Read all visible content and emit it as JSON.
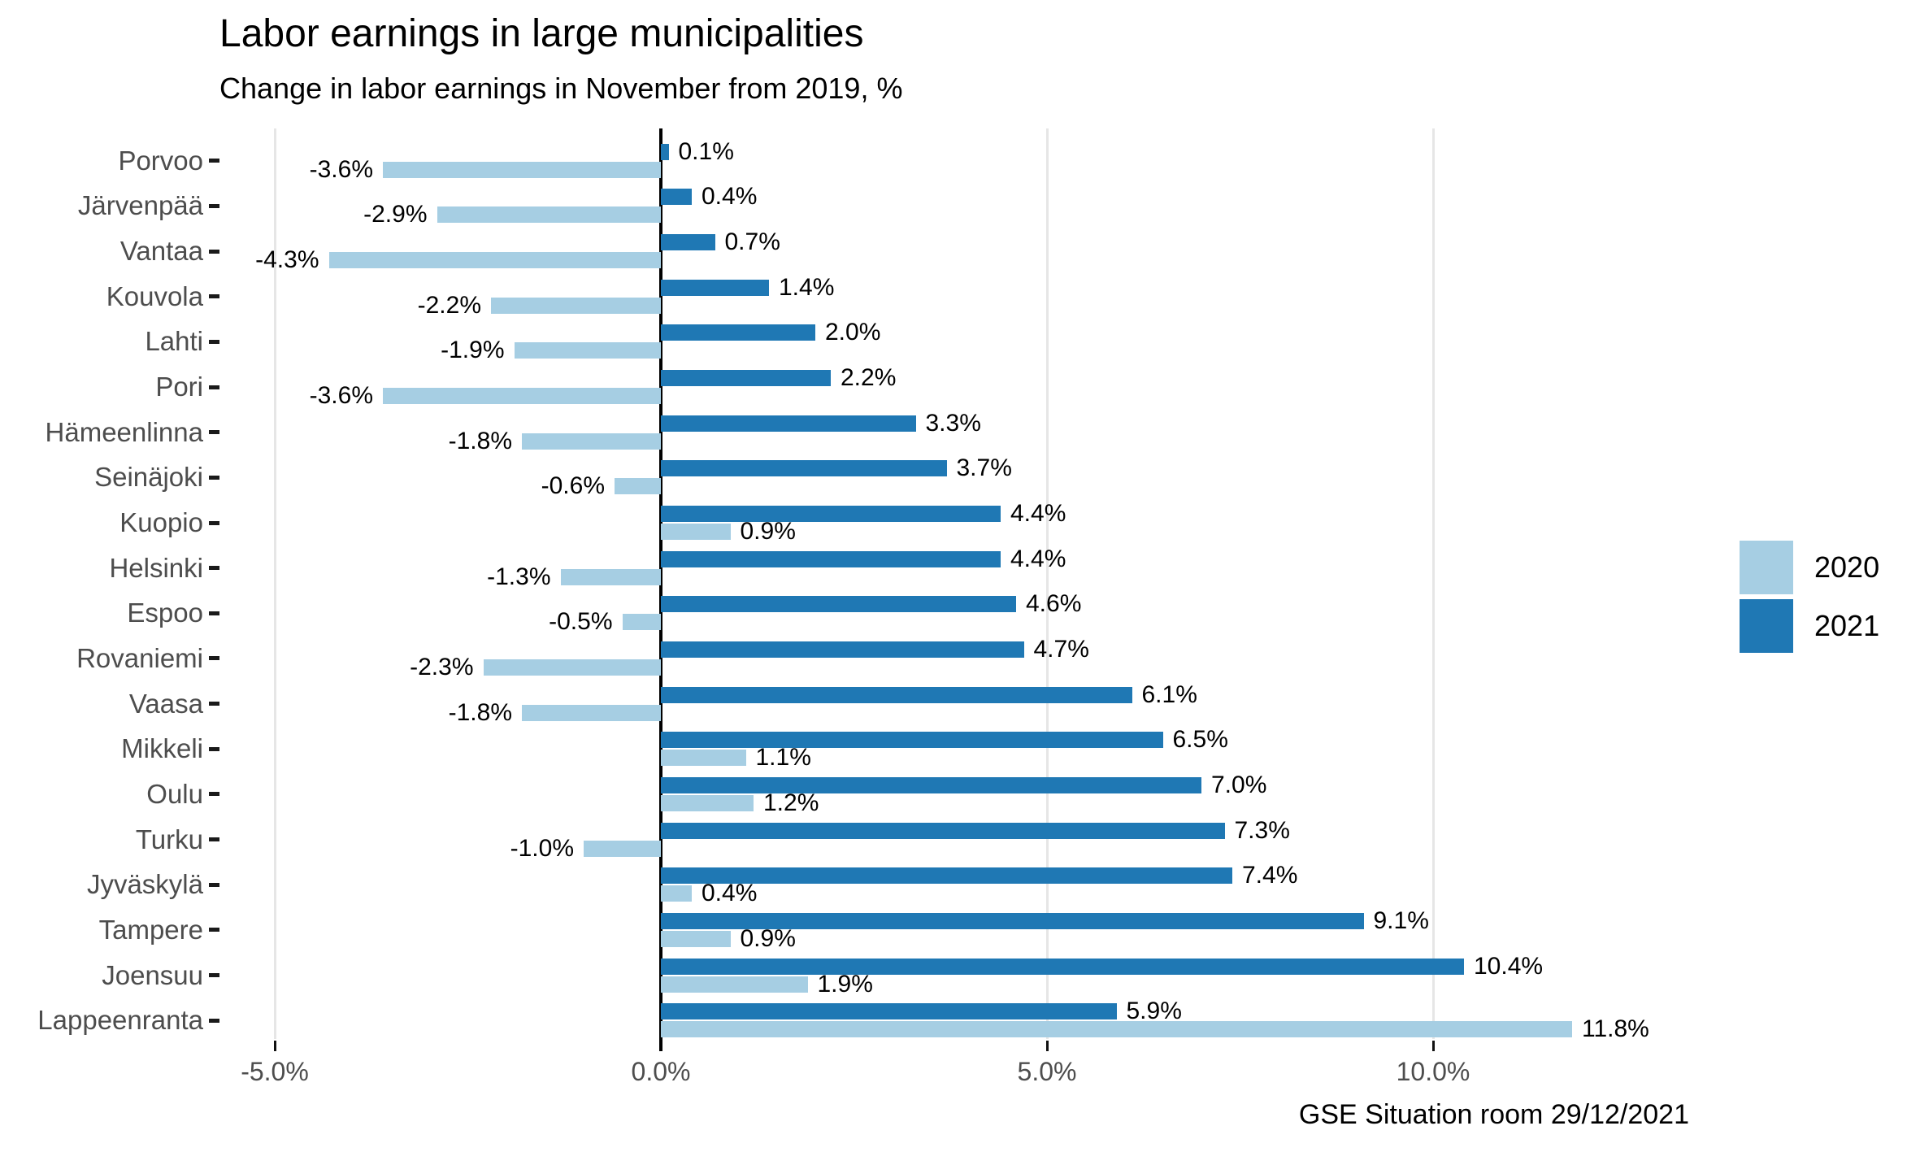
{
  "chart_data": {
    "type": "bar",
    "orientation": "horizontal",
    "title": "Labor earnings in large municipalities",
    "subtitle": "Change in labor earnings in November from 2019, %",
    "caption": "GSE Situation room 29/12/2021",
    "categories": [
      "Porvoo",
      "Järvenpää",
      "Vantaa",
      "Kouvola",
      "Lahti",
      "Pori",
      "Hämeenlinna",
      "Seinäjoki",
      "Kuopio",
      "Helsinki",
      "Espoo",
      "Rovaniemi",
      "Vaasa",
      "Mikkeli",
      "Oulu",
      "Turku",
      "Jyväskylä",
      "Tampere",
      "Joensuu",
      "Lappeenranta"
    ],
    "series": [
      {
        "name": "2020",
        "color": "#A6CEE3",
        "values": [
          -3.6,
          -2.9,
          -4.3,
          -2.2,
          -1.9,
          -3.6,
          -1.8,
          -0.6,
          0.9,
          -1.3,
          -0.5,
          -2.3,
          -1.8,
          1.1,
          1.2,
          -1.0,
          0.4,
          0.9,
          1.9,
          11.8
        ]
      },
      {
        "name": "2021",
        "color": "#1F78B4",
        "values": [
          0.1,
          0.4,
          0.7,
          1.4,
          2.0,
          2.2,
          3.3,
          3.7,
          4.4,
          4.4,
          4.6,
          4.7,
          6.1,
          6.5,
          7.0,
          7.3,
          7.4,
          9.1,
          10.4,
          5.9
        ]
      }
    ],
    "value_label_format": "0.0%",
    "x_ticks": [
      {
        "value": -5,
        "label": "-5.0%"
      },
      {
        "value": 0,
        "label": "0.0%"
      },
      {
        "value": 5,
        "label": "5.0%"
      },
      {
        "value": 10,
        "label": "10.0%"
      }
    ],
    "xlim": [
      -5.6,
      13.4
    ],
    "grid": "vertical-light-gray",
    "zero_line": "black",
    "legend_position": "right",
    "legend_items": [
      {
        "label": "2020",
        "color": "#A6CEE3"
      },
      {
        "label": "2021",
        "color": "#1F78B4"
      }
    ]
  }
}
